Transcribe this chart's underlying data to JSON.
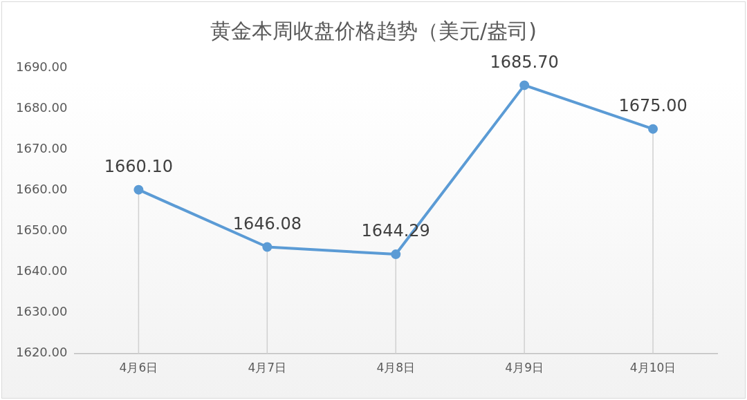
{
  "chart_data": {
    "type": "line",
    "title": "黄金本周收盘价格趋势（美元/盎司)",
    "categories": [
      "4月6日",
      "4月7日",
      "4月8日",
      "4月9日",
      "4月10日"
    ],
    "series": [
      {
        "color": "#5b9bd5",
        "values": [
          1660.1,
          1646.08,
          1644.29,
          1685.7,
          1675.0
        ]
      }
    ],
    "value_labels": [
      "1660.10",
      "1646.08",
      "1644.29",
      "1685.70",
      "1675.00"
    ],
    "ylim": [
      1620,
      1690
    ],
    "yticks": [
      {
        "value": 1620,
        "label": "1620.00"
      },
      {
        "value": 1630,
        "label": "1630.00"
      },
      {
        "value": 1640,
        "label": "1640.00"
      },
      {
        "value": 1650,
        "label": "1650.00"
      },
      {
        "value": 1660,
        "label": "1660.00"
      },
      {
        "value": 1670,
        "label": "1670.00"
      },
      {
        "value": 1680,
        "label": "1680.00"
      },
      {
        "value": 1690,
        "label": "1690.00"
      }
    ],
    "grid": "x",
    "legend": false,
    "marker": "circle",
    "line_style": "solid"
  }
}
